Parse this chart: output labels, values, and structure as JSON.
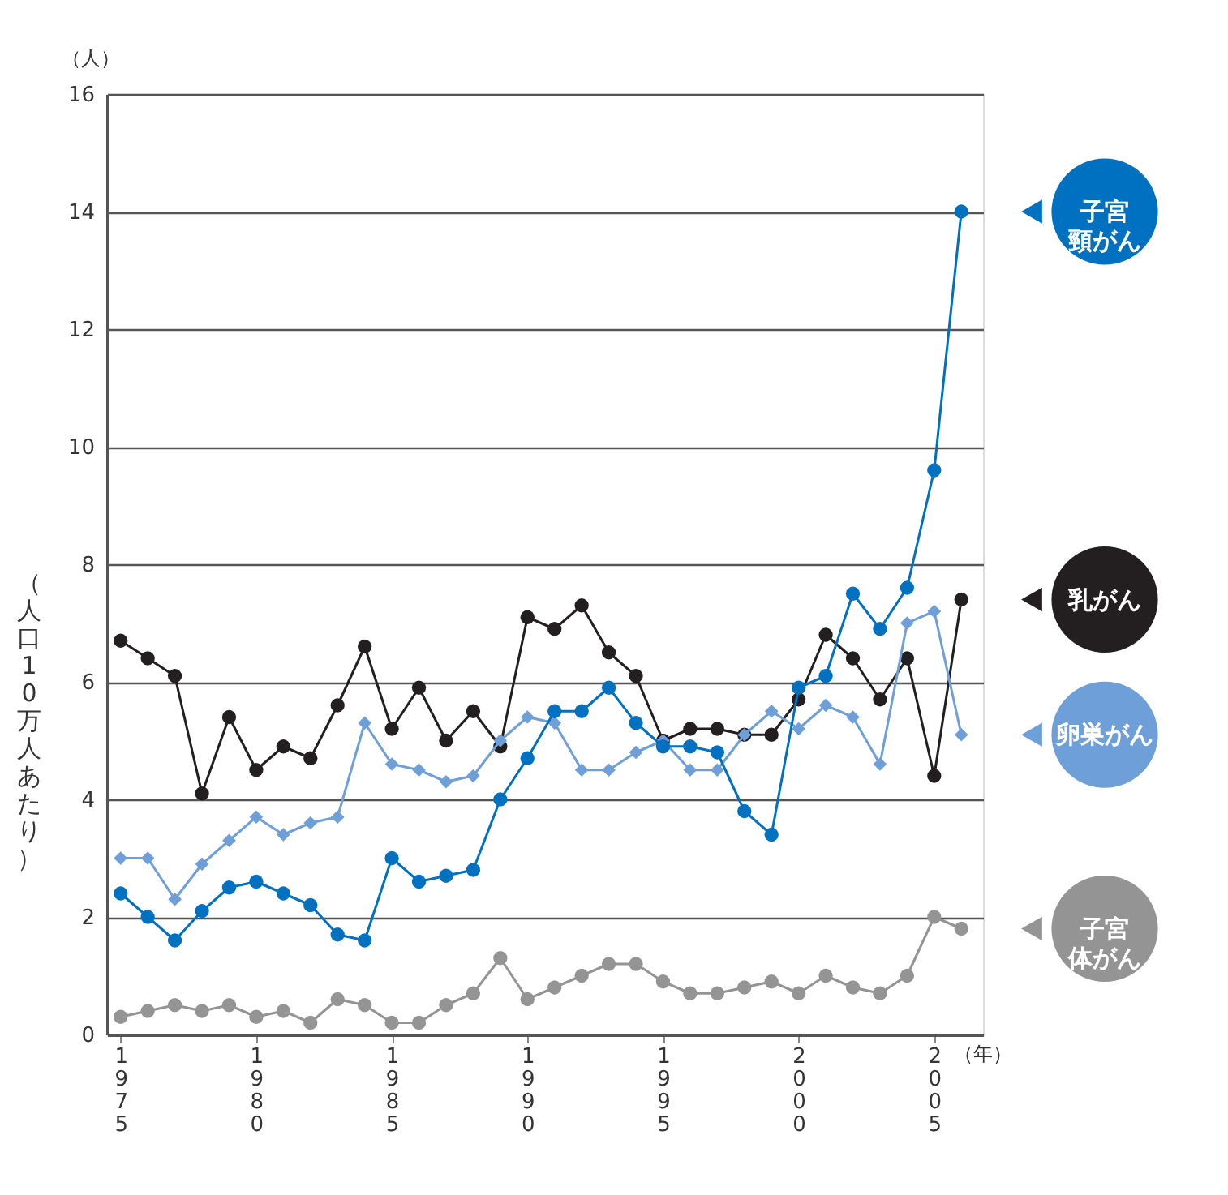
{
  "chart_data": {
    "type": "line",
    "ylabel": "（人口10万人あたり）",
    "xlabel": "（年）",
    "annotations": [
      "（人）"
    ],
    "x": [
      1975,
      1976,
      1977,
      1978,
      1979,
      1980,
      1981,
      1982,
      1983,
      1984,
      1985,
      1986,
      1987,
      1988,
      1989,
      1990,
      1991,
      1992,
      1993,
      1994,
      1995,
      1996,
      1997,
      1998,
      1999,
      2000,
      2001,
      2002,
      2003,
      2004,
      2005,
      2006
    ],
    "xlim": [
      1974.5,
      2006.8
    ],
    "xticks": [
      1975,
      1980,
      1985,
      1990,
      1995,
      2000,
      2005
    ],
    "ylim": [
      0,
      16
    ],
    "yticks": [
      0,
      2,
      4,
      6,
      8,
      10,
      12,
      14,
      16
    ],
    "grid": "y",
    "legend": "right",
    "line_style": "solid",
    "series": [
      {
        "name": "乳がん",
        "color": "#231f20",
        "marker": "circle",
        "values": [
          6.7,
          6.4,
          6.1,
          4.1,
          5.4,
          4.5,
          4.9,
          4.7,
          5.6,
          6.6,
          5.2,
          5.9,
          5.0,
          5.5,
          4.9,
          7.1,
          6.9,
          7.3,
          6.5,
          6.1,
          5.0,
          5.2,
          5.2,
          5.1,
          5.1,
          5.7,
          6.8,
          6.4,
          5.7,
          6.4,
          4.4,
          7.4
        ]
      },
      {
        "name": "卵巣がん",
        "color": "#6f9fd8",
        "marker": "diamond",
        "values": [
          3.0,
          3.0,
          2.3,
          2.9,
          3.3,
          3.7,
          3.4,
          3.6,
          3.7,
          5.3,
          4.6,
          4.5,
          4.3,
          4.4,
          5.0,
          5.4,
          5.3,
          4.5,
          4.5,
          4.8,
          5.0,
          4.5,
          4.5,
          5.1,
          5.5,
          5.2,
          5.6,
          5.4,
          4.6,
          7.0,
          7.2,
          5.1
        ]
      },
      {
        "name": "子宮頸がん",
        "color": "#0070c0",
        "marker": "circle",
        "values": [
          2.4,
          2.0,
          1.6,
          2.1,
          2.5,
          2.6,
          2.4,
          2.2,
          1.7,
          1.6,
          3.0,
          2.6,
          2.7,
          2.8,
          4.0,
          4.7,
          5.5,
          5.5,
          5.9,
          5.3,
          4.9,
          4.9,
          4.8,
          3.8,
          3.4,
          5.9,
          6.1,
          7.5,
          6.9,
          7.6,
          9.6,
          14.0
        ]
      },
      {
        "name": "子宮体がん",
        "color": "#949494",
        "marker": "circle",
        "values": [
          0.3,
          0.4,
          0.5,
          0.4,
          0.5,
          0.3,
          0.4,
          0.2,
          0.6,
          0.5,
          0.2,
          0.2,
          0.5,
          0.7,
          1.3,
          0.6,
          0.8,
          1.0,
          1.2,
          1.2,
          0.9,
          0.7,
          0.7,
          0.8,
          0.9,
          0.7,
          1.0,
          0.8,
          0.7,
          1.0,
          2.0,
          1.8
        ]
      }
    ]
  }
}
